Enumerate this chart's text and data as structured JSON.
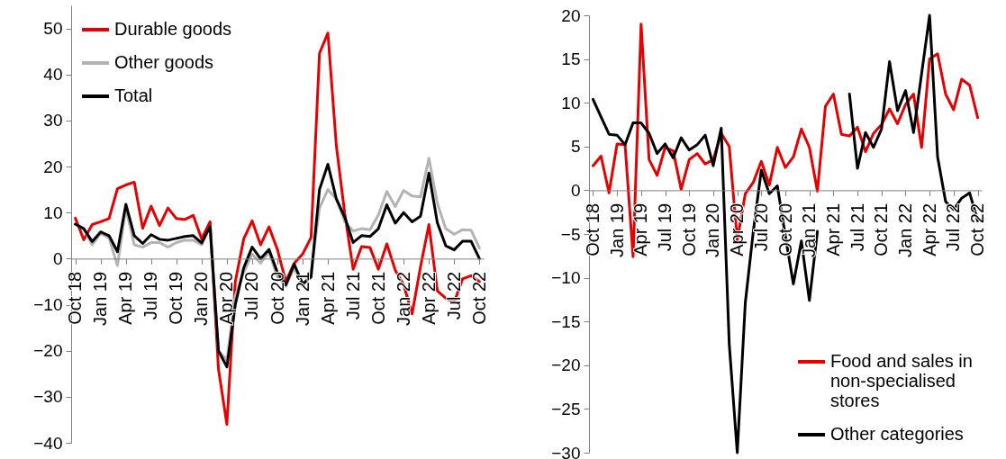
{
  "chart_data": [
    {
      "type": "line",
      "categories": [
        "Oct 18",
        null,
        null,
        "Jan 19",
        null,
        null,
        "Apr 19",
        null,
        null,
        "Jul 19",
        null,
        null,
        "Oct 19",
        null,
        null,
        "Jan 20",
        null,
        null,
        "Apr 20",
        null,
        null,
        "Jul 20",
        null,
        null,
        "Oct 20",
        null,
        null,
        "Jan 21",
        null,
        null,
        "Apr 21",
        null,
        null,
        "Jul 21",
        null,
        null,
        "Oct 21",
        null,
        null,
        "Jan 22",
        null,
        null,
        "Apr 22",
        null,
        null,
        "Jul 22",
        null,
        null,
        "Oct 22"
      ],
      "series": [
        {
          "name": "Durable goods",
          "color": "#e60000",
          "values": [
            8.8,
            4.1,
            7.4,
            8,
            8.7,
            15.2,
            16,
            16.6,
            6.6,
            11.4,
            7.2,
            11,
            8.7,
            8.5,
            9.4,
            4.3,
            8,
            -24,
            -36,
            -5,
            4.3,
            8.2,
            3,
            6.9,
            2,
            -5,
            -1,
            1,
            4.6,
            44.6,
            49,
            24.6,
            9.8,
            -2.3,
            2.6,
            2.4,
            -2.3,
            3.2,
            -2.5,
            -5.7,
            -12,
            -1.8,
            7.4,
            -7,
            -8.6,
            -9.5,
            -4.4,
            -3.7,
            -5
          ]
        },
        {
          "name": "Other goods",
          "color": "#b3b3b3",
          "values": [
            7.5,
            6.5,
            3,
            5.5,
            4.5,
            -1.5,
            11,
            3,
            2.5,
            3.5,
            3.5,
            2.5,
            3.5,
            4,
            4,
            3,
            7,
            -20,
            -22,
            -8,
            -3,
            1,
            -1,
            1.5,
            -4,
            -6,
            -2,
            -6,
            -3,
            11,
            15,
            13,
            8,
            6,
            6.5,
            6.3,
            9.5,
            14.6,
            11.3,
            14.8,
            13.6,
            13.4,
            21.8,
            12,
            6.5,
            5.3,
            6.3,
            6.2,
            2.3
          ]
        },
        {
          "name": "Total",
          "color": "#000000",
          "values": [
            7.5,
            6.5,
            3.7,
            5.8,
            5,
            1.5,
            11.8,
            5,
            3.3,
            5.2,
            4.2,
            4,
            4.4,
            4.8,
            5,
            3.4,
            7,
            -20,
            -23.5,
            -10,
            -2,
            2.5,
            0,
            2,
            -3,
            -5.7,
            -1.2,
            -5.5,
            -4,
            15,
            20.5,
            13,
            9,
            3.5,
            5,
            4.8,
            6.5,
            11.7,
            7.7,
            10,
            8,
            9.2,
            18.6,
            7.8,
            2.8,
            1.9,
            3.8,
            3.8,
            0
          ]
        }
      ],
      "ylim": [
        -40,
        55
      ],
      "yticks": [
        -40,
        -30,
        -20,
        -10,
        0,
        10,
        20,
        30,
        40,
        50
      ],
      "grid": false,
      "legend": "top left"
    },
    {
      "type": "line",
      "categories": [
        "Oct 18",
        null,
        null,
        "Jan 19",
        null,
        null,
        "Apr 19",
        null,
        null,
        "Jul 19",
        null,
        null,
        "Oct 19",
        null,
        null,
        "Jan 20",
        null,
        null,
        "Apr 20",
        null,
        null,
        "Jul 20",
        null,
        null,
        "Oct 20",
        null,
        null,
        "Jan 21",
        null,
        null,
        "Apr 21",
        null,
        null,
        "Jul 21",
        null,
        null,
        "Oct 21",
        null,
        null,
        "Jan 22",
        null,
        null,
        "Apr 22",
        null,
        null,
        "Jul 22",
        null,
        null,
        "Oct 22"
      ],
      "series": [
        {
          "name": "Food and sales in non-specialised stores",
          "color": "#e60000",
          "values": [
            2.8,
            3.9,
            -0.3,
            5.3,
            5.2,
            -7.6,
            19,
            3.5,
            1.7,
            4.9,
            4.5,
            0.1,
            3.5,
            4.2,
            3,
            3.5,
            6.5,
            5,
            -5.7,
            -0.4,
            0.9,
            3.3,
            0.6,
            4.9,
            2.6,
            3.8,
            7,
            4.9,
            -0.1,
            9.6,
            11,
            6.4,
            6.2,
            7.2,
            4.4,
            6.5,
            7.5,
            9.3,
            7.6,
            9.8,
            11,
            4.9,
            15,
            15.6,
            11,
            9.2,
            12.7,
            12,
            8.3
          ]
        },
        {
          "name": "Other categories",
          "color": "#000000",
          "values": [
            10.4,
            8.4,
            6.4,
            6.3,
            5.2,
            7.7,
            7.7,
            6.5,
            4.2,
            5.3,
            3.7,
            6,
            4.6,
            5.2,
            6.3,
            2.8,
            7.1,
            -17.6,
            -30,
            -12.9,
            -4.7,
            2.3,
            -0.4,
            0.5,
            -5.2,
            -10.7,
            -5.8,
            -12.6,
            -4.7,
            null,
            null,
            null,
            11,
            2.5,
            6.6,
            4.9,
            7,
            14.7,
            9.1,
            11.4,
            6.6,
            13.3,
            20,
            3.8,
            -1.3,
            -2.2,
            -0.9,
            -0.3,
            -3.5
          ]
        }
      ],
      "ylim": [
        -30,
        20
      ],
      "yticks": [
        -30,
        -25,
        -20,
        -15,
        -10,
        -5,
        0,
        5,
        10,
        15,
        20
      ],
      "grid": false,
      "legend": "bottom right"
    }
  ]
}
